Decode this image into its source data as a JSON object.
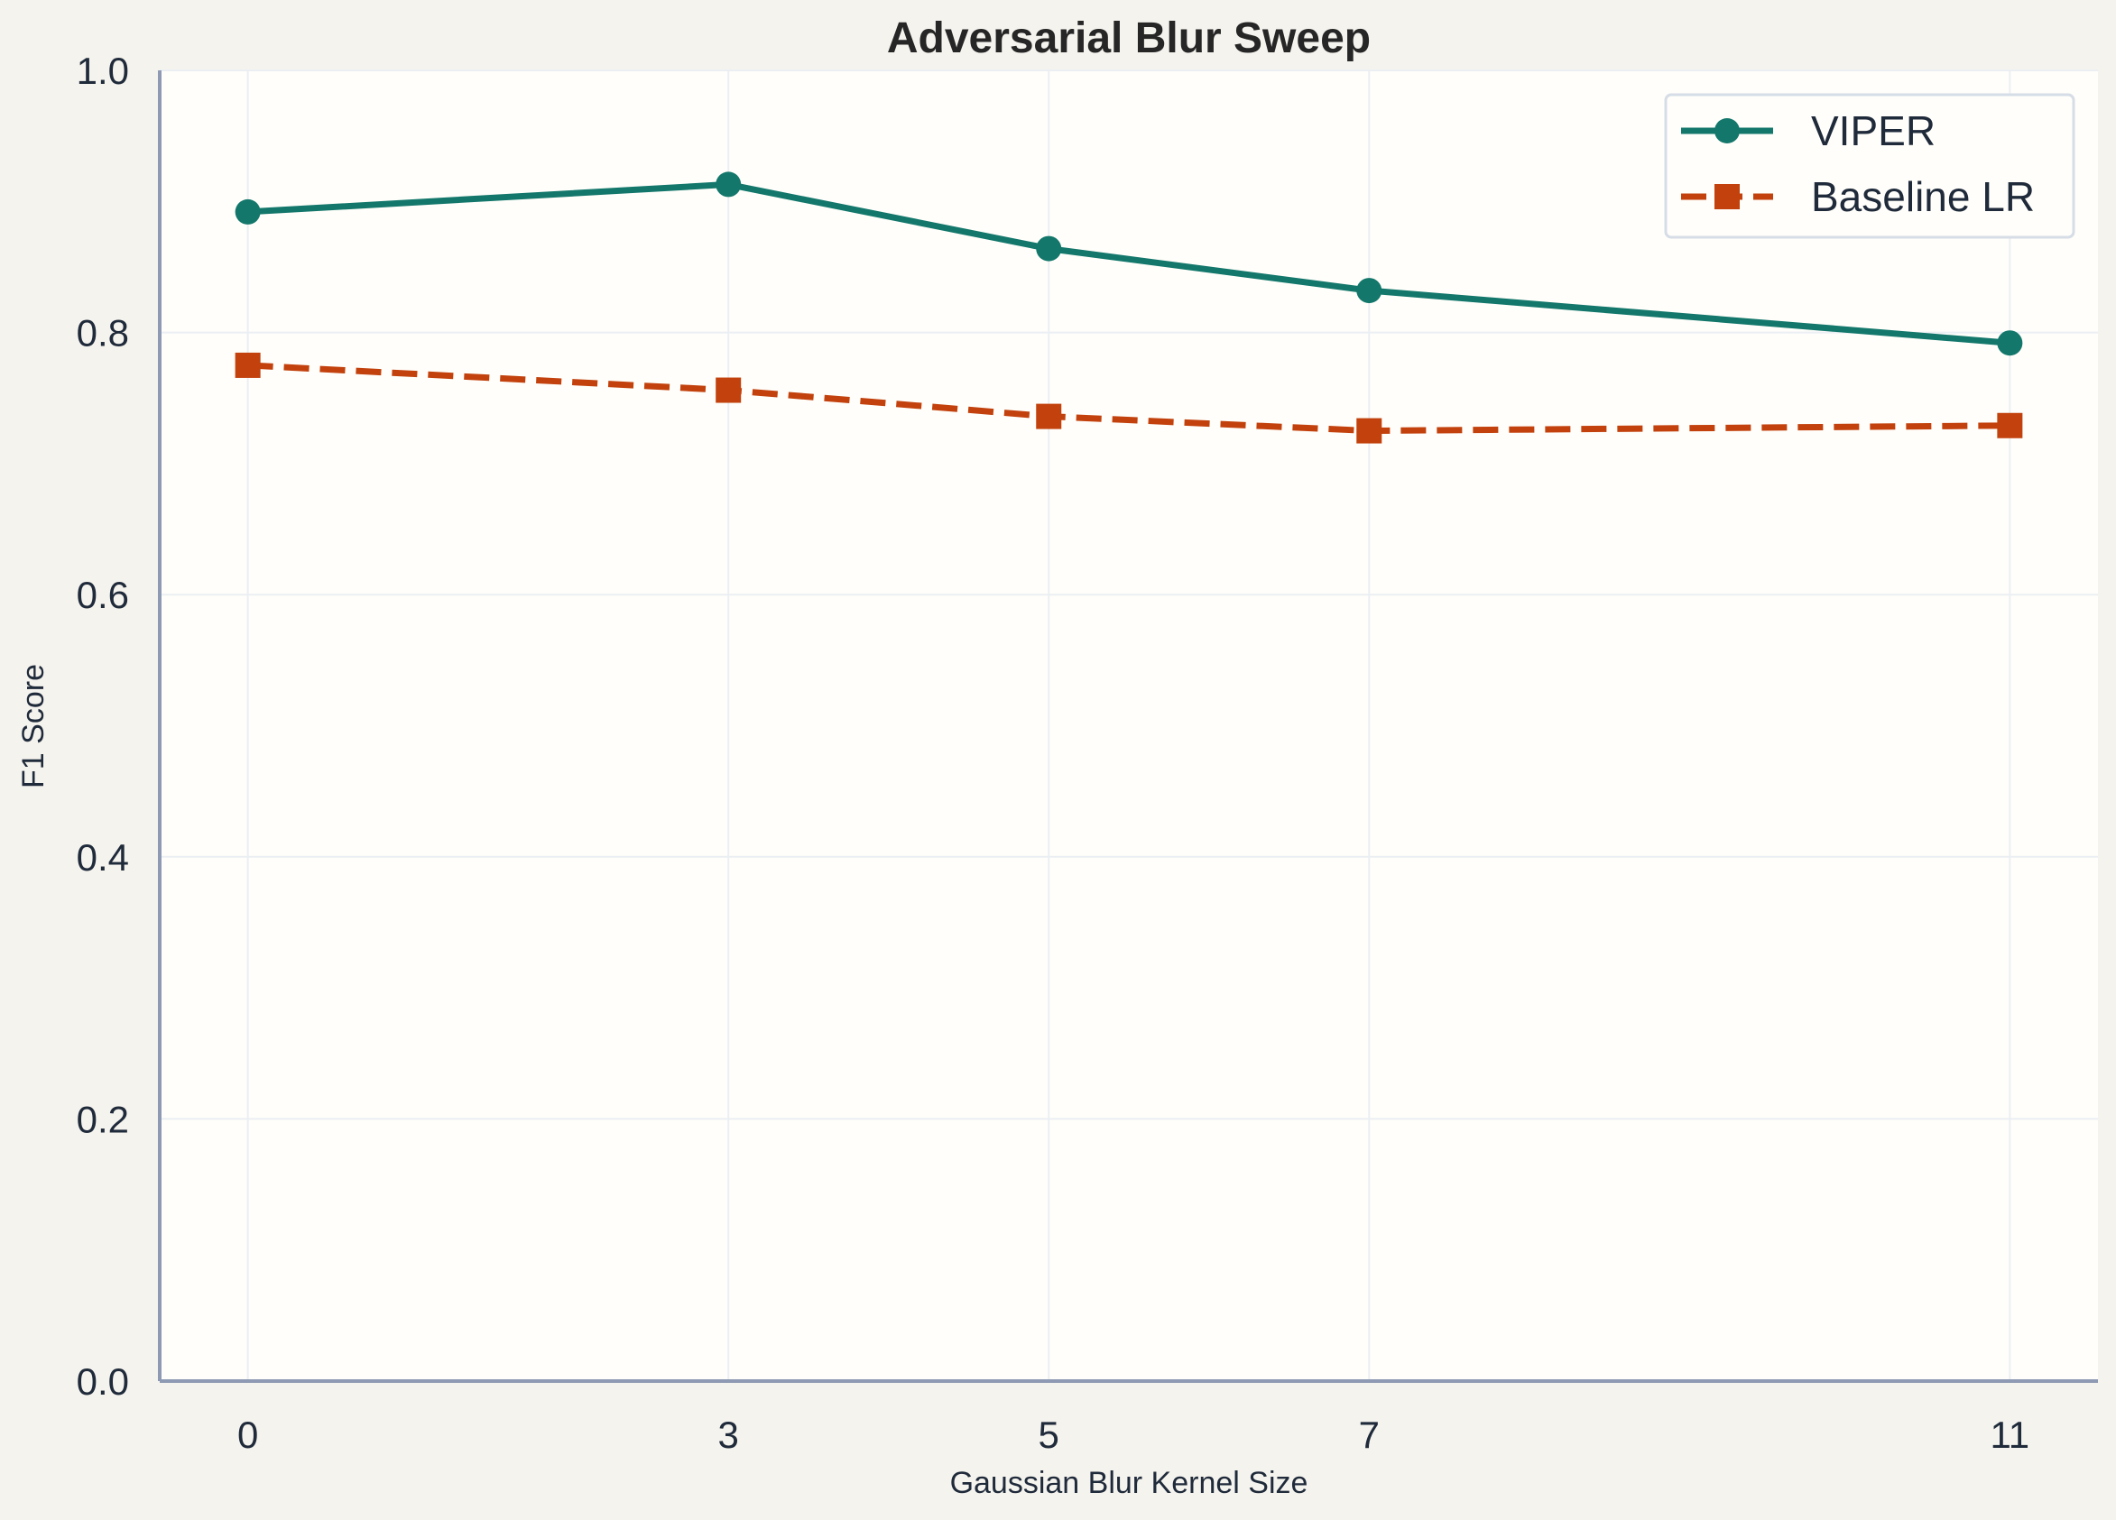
{
  "chart_data": {
    "type": "line",
    "title": "Adversarial Blur Sweep",
    "xlabel": "Gaussian Blur Kernel Size",
    "ylabel": "F1 Score",
    "x": [
      0,
      3,
      5,
      7,
      11
    ],
    "xticks": [
      "0",
      "3",
      "5",
      "7",
      "11"
    ],
    "xlim": [
      -0.55,
      11.55
    ],
    "ylim": [
      0.0,
      1.0
    ],
    "yticks": [
      "0.0",
      "0.2",
      "0.4",
      "0.6",
      "0.8",
      "1.0"
    ],
    "grid": true,
    "legend_position": "top-right",
    "series": [
      {
        "name": "VIPER",
        "values": [
          0.892,
          0.913,
          0.864,
          0.832,
          0.792
        ],
        "color": "#13776b",
        "style": "solid",
        "marker": "circle"
      },
      {
        "name": "Baseline LR",
        "values": [
          0.775,
          0.756,
          0.736,
          0.725,
          0.729
        ],
        "color": "#c2410c",
        "style": "dashed",
        "marker": "square"
      }
    ]
  }
}
